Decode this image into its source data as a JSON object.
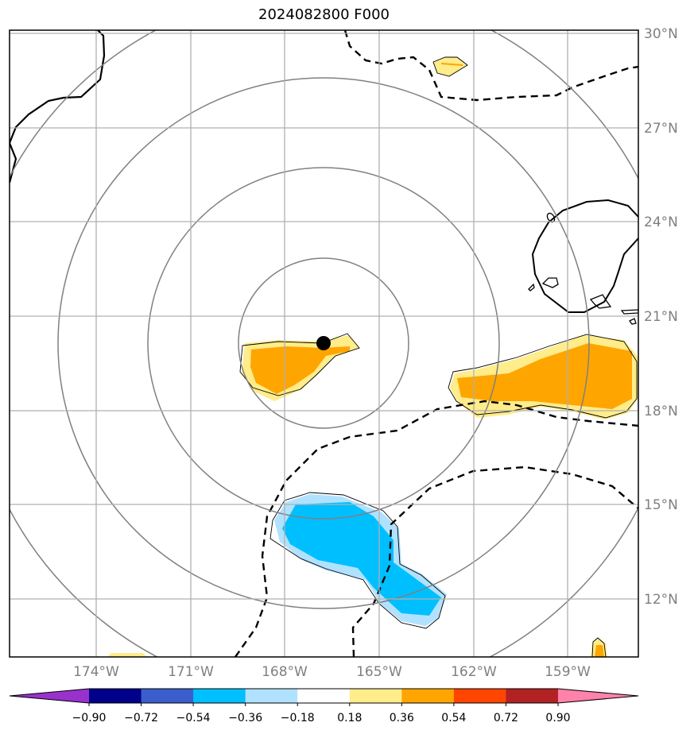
{
  "title": "2024082800 F000",
  "lon_labels": [
    "174°W",
    "171°W",
    "168°W",
    "165°W",
    "162°W",
    "159°W"
  ],
  "lat_labels": [
    "30°N",
    "27°N",
    "24°N",
    "21°N",
    "18°N",
    "15°N",
    "12°N"
  ],
  "colorbar": {
    "tick_labels": [
      "−0.90",
      "−0.72",
      "−0.54",
      "−0.36",
      "−0.18",
      "0.18",
      "0.36",
      "0.54",
      "0.72",
      "0.90"
    ],
    "colors": [
      "#9932cc",
      "#00008b",
      "#3a5fcd",
      "#00bfff",
      "#b0e2ff",
      "#ffffff",
      "#ffec8b",
      "#ffa500",
      "#ff4500",
      "#b22222",
      "#ff82ab"
    ]
  },
  "storm_center": {
    "lon": "166.8°W",
    "lat": "20.2°N"
  }
}
